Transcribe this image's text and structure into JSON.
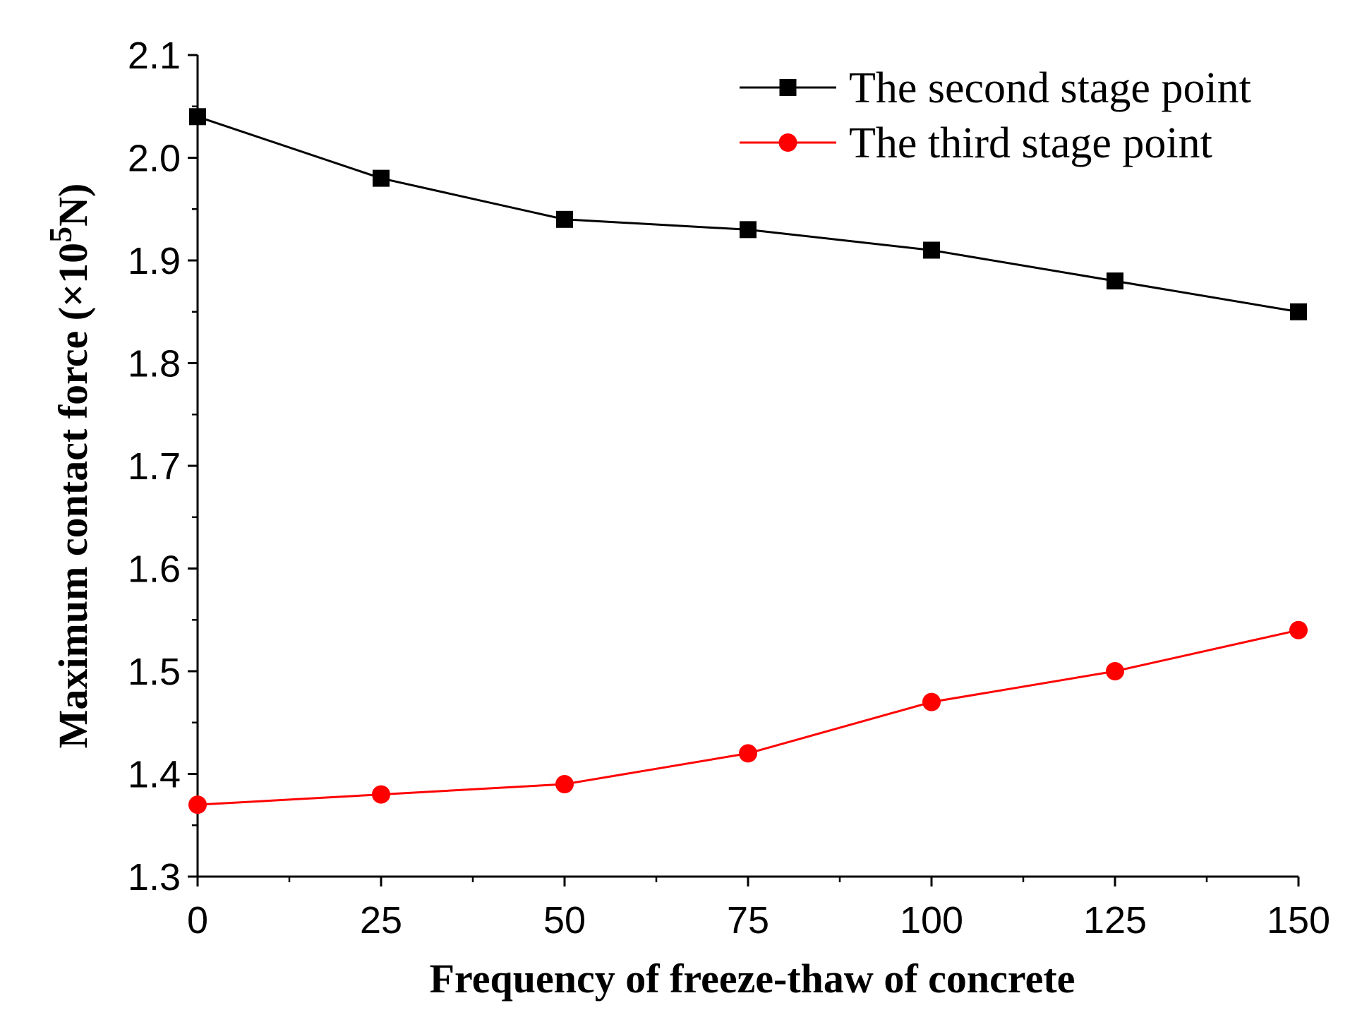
{
  "chart_data": {
    "type": "line",
    "title": "",
    "xlabel": "Frequency of freeze-thaw of concrete",
    "ylabel": {
      "prefix": "Maximum contact force (×10",
      "exponent": "5",
      "suffix": "N)"
    },
    "x": [
      0,
      25,
      50,
      75,
      100,
      125,
      150
    ],
    "xlim": [
      0,
      150
    ],
    "ylim": [
      1.3,
      2.1
    ],
    "xticks": [
      "0",
      "25",
      "50",
      "75",
      "100",
      "125",
      "150"
    ],
    "yticks": [
      "1.3",
      "1.4",
      "1.5",
      "1.6",
      "1.7",
      "1.8",
      "1.9",
      "2.0",
      "2.1"
    ],
    "grid": false,
    "legend_position": "top-right",
    "series": [
      {
        "name": "The second stage point",
        "values": [
          2.04,
          1.98,
          1.94,
          1.93,
          1.91,
          1.88,
          1.85
        ],
        "color": "#000000",
        "marker": "square"
      },
      {
        "name": "The third stage point",
        "values": [
          1.37,
          1.38,
          1.39,
          1.42,
          1.47,
          1.5,
          1.54
        ],
        "color": "#ff0000",
        "marker": "circle"
      }
    ]
  }
}
